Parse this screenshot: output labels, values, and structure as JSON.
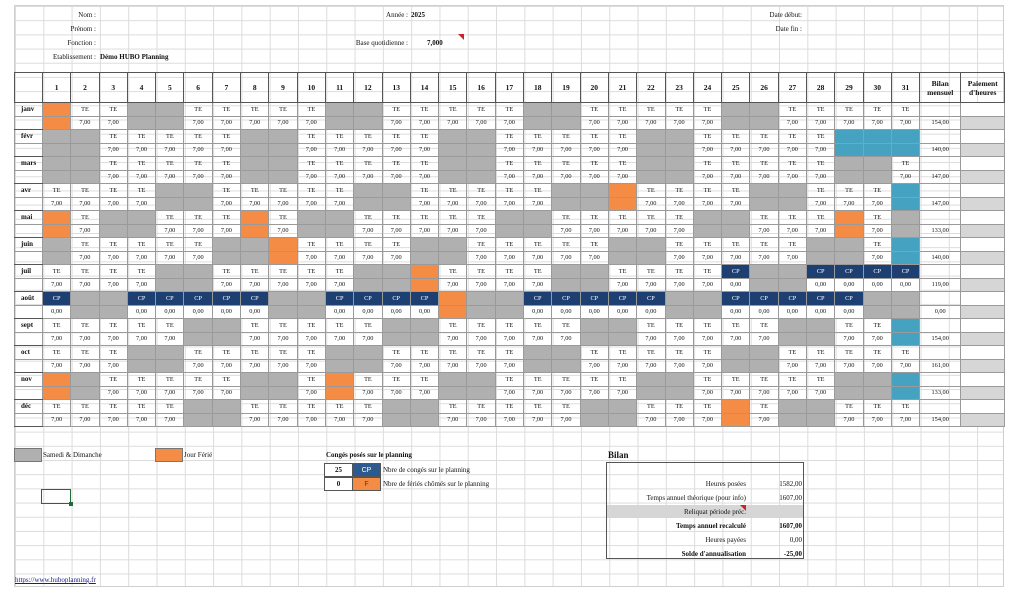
{
  "header": {
    "nom_label": "Nom :",
    "prenom_label": "Prénom :",
    "fonction_label": "Fonction :",
    "etablissement_label": "Etablissement :",
    "etablissement_value": "Démo HUBO Planning",
    "annee_label": "Année :",
    "annee_value": "2025",
    "base_label": "Base quotidienne :",
    "base_value": "7,000",
    "date_debut_label": "Date début:",
    "date_fin_label": "Date fin :"
  },
  "table": {
    "days": [
      "1",
      "2",
      "3",
      "4",
      "5",
      "6",
      "7",
      "8",
      "9",
      "10",
      "11",
      "12",
      "13",
      "14",
      "15",
      "16",
      "17",
      "18",
      "19",
      "20",
      "21",
      "22",
      "23",
      "24",
      "25",
      "26",
      "27",
      "28",
      "29",
      "30",
      "31"
    ],
    "bilan_header": "Bilan mensuel",
    "paiement_header": "Paiement d'heures",
    "work_code": "TE",
    "work_hours": "7,00",
    "cp_code": "CP",
    "cp_hours": "0,00",
    "months": [
      {
        "name": "janv",
        "bilan": "154,00",
        "hol": [
          1
        ],
        "we": [
          4,
          5,
          11,
          12,
          18,
          19,
          25,
          26
        ],
        "inv": [],
        "cp": []
      },
      {
        "name": "févr",
        "bilan": "140,00",
        "hol": [],
        "we": [
          1,
          2,
          8,
          9,
          15,
          16,
          22,
          23
        ],
        "inv": [
          29,
          30,
          31
        ],
        "cp": []
      },
      {
        "name": "mars",
        "bilan": "147,00",
        "hol": [],
        "we": [
          1,
          2,
          8,
          9,
          15,
          16,
          22,
          23,
          29,
          30
        ],
        "inv": [],
        "cp": []
      },
      {
        "name": "avr",
        "bilan": "147,00",
        "hol": [
          21
        ],
        "we": [
          5,
          6,
          12,
          13,
          19,
          20,
          26,
          27
        ],
        "inv": [
          31
        ],
        "cp": []
      },
      {
        "name": "mai",
        "bilan": "133,00",
        "hol": [
          1,
          8,
          29
        ],
        "we": [
          3,
          4,
          10,
          11,
          17,
          18,
          24,
          25,
          31
        ],
        "inv": [],
        "cp": []
      },
      {
        "name": "juin",
        "bilan": "140,00",
        "hol": [
          9
        ],
        "we": [
          1,
          7,
          8,
          14,
          15,
          21,
          22,
          28,
          29
        ],
        "inv": [
          31
        ],
        "cp": []
      },
      {
        "name": "juil",
        "bilan": "119,00",
        "hol": [
          14
        ],
        "we": [
          5,
          6,
          12,
          13,
          19,
          20,
          26,
          27
        ],
        "inv": [],
        "cp": [
          25,
          28,
          29,
          30,
          31
        ]
      },
      {
        "name": "août",
        "bilan": "0,00",
        "hol": [
          15
        ],
        "we": [
          2,
          3,
          9,
          10,
          16,
          17,
          23,
          24,
          30,
          31
        ],
        "inv": [],
        "cp": [
          1,
          4,
          5,
          6,
          7,
          8,
          11,
          12,
          13,
          14,
          18,
          19,
          20,
          21,
          22,
          25,
          26,
          27,
          28,
          29
        ]
      },
      {
        "name": "sept",
        "bilan": "154,00",
        "hol": [],
        "we": [
          6,
          7,
          13,
          14,
          20,
          21,
          27,
          28
        ],
        "inv": [
          31
        ],
        "cp": []
      },
      {
        "name": "oct",
        "bilan": "161,00",
        "hol": [],
        "we": [
          4,
          5,
          11,
          12,
          18,
          19,
          25,
          26
        ],
        "inv": [],
        "cp": []
      },
      {
        "name": "nov",
        "bilan": "133,00",
        "hol": [
          1,
          11
        ],
        "we": [
          2,
          8,
          9,
          15,
          16,
          22,
          23,
          29,
          30
        ],
        "inv": [
          31
        ],
        "cp": []
      },
      {
        "name": "déc",
        "bilan": "154,00",
        "hol": [
          25
        ],
        "we": [
          6,
          7,
          13,
          14,
          20,
          21,
          27,
          28
        ],
        "inv": [],
        "cp": []
      }
    ]
  },
  "legend": {
    "weekend_label": "Samedi & Dimanche",
    "holiday_label": "Jour Férié",
    "weekend_color": "#b0b0b0",
    "holiday_color": "#f48c46",
    "cp_color": "#1d3f72",
    "invalid_color": "#45a2c0"
  },
  "conges": {
    "title": "Congés posés sur le planning",
    "cp_count": "25",
    "cp_code": "CP",
    "cp_desc": "Nbre de congés  sur le planning",
    "f_count": "0",
    "f_code": "F",
    "f_desc": "Nbre de fériés chômés sur le planning"
  },
  "bilan": {
    "title": "Bilan",
    "rows": [
      {
        "label": "Heures posées",
        "value": "1582,00",
        "bold": false,
        "shaded": false
      },
      {
        "label": "Temps annuel théorique (pour info)",
        "value": "1607,00",
        "bold": false,
        "shaded": false
      },
      {
        "label": "Reliquat période préc.",
        "value": "",
        "bold": false,
        "shaded": true
      },
      {
        "label": "Temps annuel recalculé",
        "value": "1607,00",
        "bold": true,
        "shaded": false
      },
      {
        "label": "Heures payées",
        "value": "0,00",
        "bold": false,
        "shaded": false
      },
      {
        "label": "Solde d'annualisation",
        "value": "-25,00",
        "bold": true,
        "shaded": false
      }
    ]
  },
  "footer": {
    "link_text": "https://www.huboplanning.fr"
  }
}
